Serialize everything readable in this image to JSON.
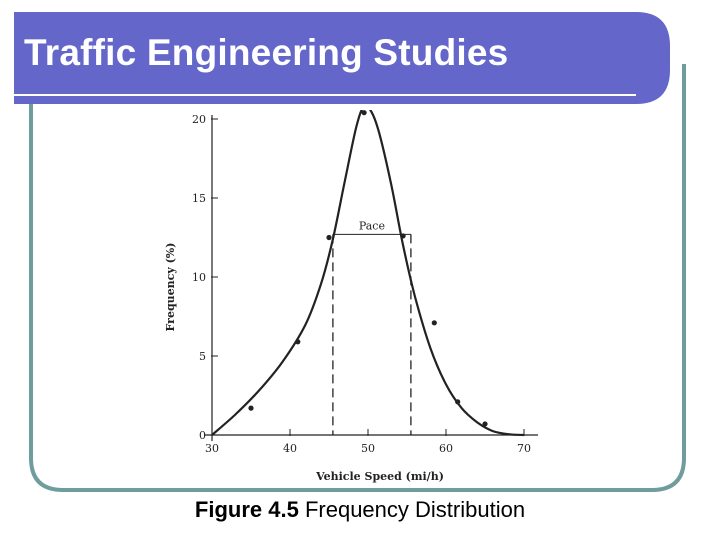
{
  "slide": {
    "title": "Traffic Engineering Studies",
    "caption_bold": "Figure 4.5",
    "caption_rest": " Frequency Distribution"
  },
  "colors": {
    "title_bar": "#6466c9",
    "frame_border": "#6f9c9c",
    "chart_ink": "#222222"
  },
  "chart_data": {
    "type": "line",
    "xlabel": "Vehicle Speed (mi/h)",
    "ylabel": "Frequency (%)",
    "xlim": [
      30,
      70
    ],
    "ylim": [
      0,
      20
    ],
    "x_ticks": [
      30,
      40,
      50,
      60,
      70
    ],
    "y_ticks": [
      0,
      5,
      10,
      15,
      20
    ],
    "grid": false,
    "series": [
      {
        "style": "points",
        "x": [
          35,
          41,
          45,
          49.5,
          54.5,
          58.5,
          61.5,
          65
        ],
        "y": [
          1.7,
          5.9,
          12.5,
          20.4,
          12.6,
          7.1,
          2.1,
          0.7
        ]
      },
      {
        "style": "smooth-curve",
        "x": [
          30,
          33,
          36,
          39,
          42,
          44,
          45.5,
          47,
          48.5,
          49.5,
          50.5,
          51.5,
          53,
          54.5,
          56,
          58,
          60,
          62,
          64,
          66,
          68,
          70
        ],
        "y": [
          0,
          1.3,
          2.8,
          4.6,
          7.0,
          9.6,
          12.4,
          16.0,
          19.5,
          20.8,
          20.4,
          19.0,
          15.8,
          12.0,
          8.8,
          5.5,
          3.2,
          1.7,
          0.8,
          0.25,
          0.05,
          0
        ]
      }
    ],
    "annotations": [
      {
        "text": "Pace",
        "x_range": [
          45.5,
          55.5
        ],
        "y": 12.7
      }
    ]
  }
}
